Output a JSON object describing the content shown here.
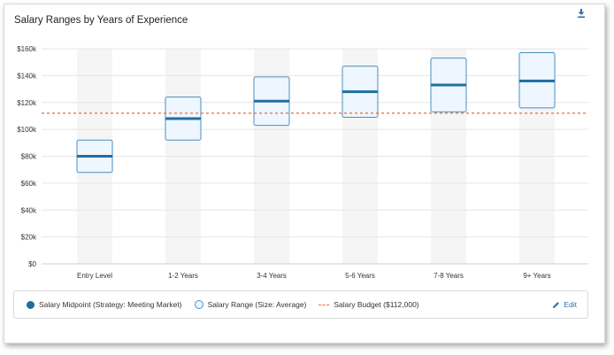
{
  "title": "Salary Ranges by Years of Experience",
  "icons": {
    "download": "download-icon",
    "edit": "pencil-icon"
  },
  "colors": {
    "midpoint": "#1f6fa0",
    "range_fill": "#eef6ff",
    "range_stroke": "#4a8fc0",
    "budget": "#e8693a",
    "column_band": "#f5f5f5",
    "grid": "#e6e6e6"
  },
  "legend": {
    "midpoint_label": "Salary Midpoint (Strategy: Meeting Market)",
    "range_label": "Salary Range (Size: Average)",
    "budget_label": "Salary Budget ($112,000)",
    "edit_label": "Edit"
  },
  "chart_data": {
    "type": "bar",
    "categories": [
      "Entry Level",
      "1-2 Years",
      "3-4 Years",
      "5-6 Years",
      "7-8 Years",
      "9+ Years"
    ],
    "range_min": [
      68000,
      92000,
      103000,
      109000,
      113000,
      116000
    ],
    "range_max": [
      92000,
      124000,
      139000,
      147000,
      153000,
      157000
    ],
    "midpoint": [
      80000,
      108000,
      121000,
      128000,
      133000,
      136000
    ],
    "budget": 112000,
    "ylim": [
      0,
      160000
    ],
    "yticks": [
      0,
      20000,
      40000,
      60000,
      80000,
      100000,
      120000,
      140000,
      160000
    ],
    "ytick_labels": [
      "$0",
      "$20k",
      "$40k",
      "$60k",
      "$80k",
      "$100k",
      "$120k",
      "$140k",
      "$160k"
    ],
    "grid": true,
    "legend_position": "bottom"
  }
}
